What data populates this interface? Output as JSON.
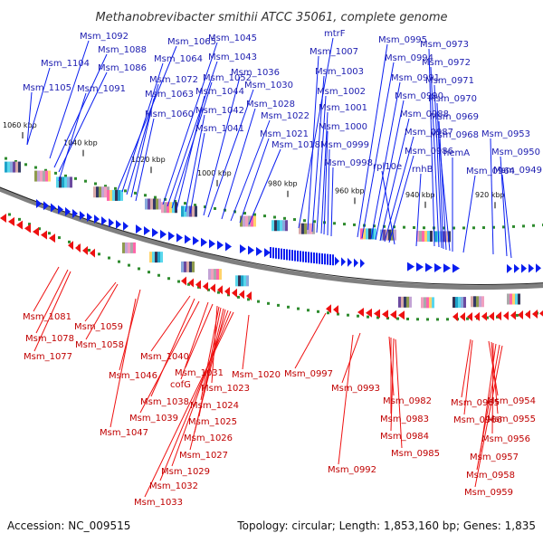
{
  "title": "Methanobrevibacter smithii ATCC 35061, complete genome",
  "accession": "Accession: NC_009515",
  "summary": "Topology: circular; Length: 1,853,160 bp; Genes: 1,835",
  "colors": {
    "forward": "#0a1ef0",
    "reverse": "#ee1111",
    "forward_label": "#1d1db0",
    "reverse_label": "#c00000",
    "backbone": "#808080",
    "tick_green": "#2e8b2e"
  },
  "kbp_ticks": [
    "1060 kbp",
    "1040 kbp",
    "1020 kbp",
    "1000 kbp",
    "980 kbp",
    "960 kbp",
    "940 kbp",
    "920 kbp"
  ],
  "forward_genes": [
    "Msm_1104",
    "Msm_1105",
    "Msm_1092",
    "Msm_1088",
    "Msm_1086",
    "Msm_1091",
    "Msm_1065",
    "Msm_1064",
    "Msm_1072",
    "Msm_1063",
    "Msm_1060",
    "Msm_1045",
    "Msm_1043",
    "Msm_1052",
    "Msm_1044",
    "Msm_1042",
    "Msm_1041",
    "Msm_1036",
    "Msm_1030",
    "Msm_1028",
    "Msm_1022",
    "Msm_1021",
    "Msm_1018",
    "mtrF",
    "Msm_1007",
    "Msm_1003",
    "Msm_1002",
    "Msm_1001",
    "Msm_1000",
    "Msm_0999",
    "Msm_0998",
    "Msm_0995",
    "Msm_0994",
    "Msm_0991",
    "Msm_0990",
    "Msm_0988",
    "Msm_0987",
    "Msm_0986",
    "rpl10e",
    "rnhB",
    "Msm_0973",
    "Msm_0972",
    "Msm_0971",
    "Msm_0970",
    "Msm_0969",
    "Msm_0968",
    "hemA",
    "Msm_0964",
    "Msm_0953",
    "Msm_0950",
    "Msm_0949"
  ],
  "reverse_genes": [
    "Msm_1081",
    "Msm_1078",
    "Msm_1077",
    "Msm_1059",
    "Msm_1058",
    "Msm_1046",
    "Msm_1047",
    "Msm_1040",
    "Msm_1038",
    "Msm_1039",
    "cofG",
    "Msm_1031",
    "Msm_1023",
    "Msm_1024",
    "Msm_1025",
    "Msm_1026",
    "Msm_1027",
    "Msm_1029",
    "Msm_1032",
    "Msm_1033",
    "Msm_1020",
    "Msm_0997",
    "Msm_0993",
    "Msm_0992",
    "Msm_0982",
    "Msm_0983",
    "Msm_0984",
    "Msm_0985",
    "Msm_0965",
    "Msm_0966",
    "Msm_0954",
    "Msm_0955",
    "Msm_0956",
    "Msm_0957",
    "Msm_0958",
    "Msm_0959"
  ]
}
